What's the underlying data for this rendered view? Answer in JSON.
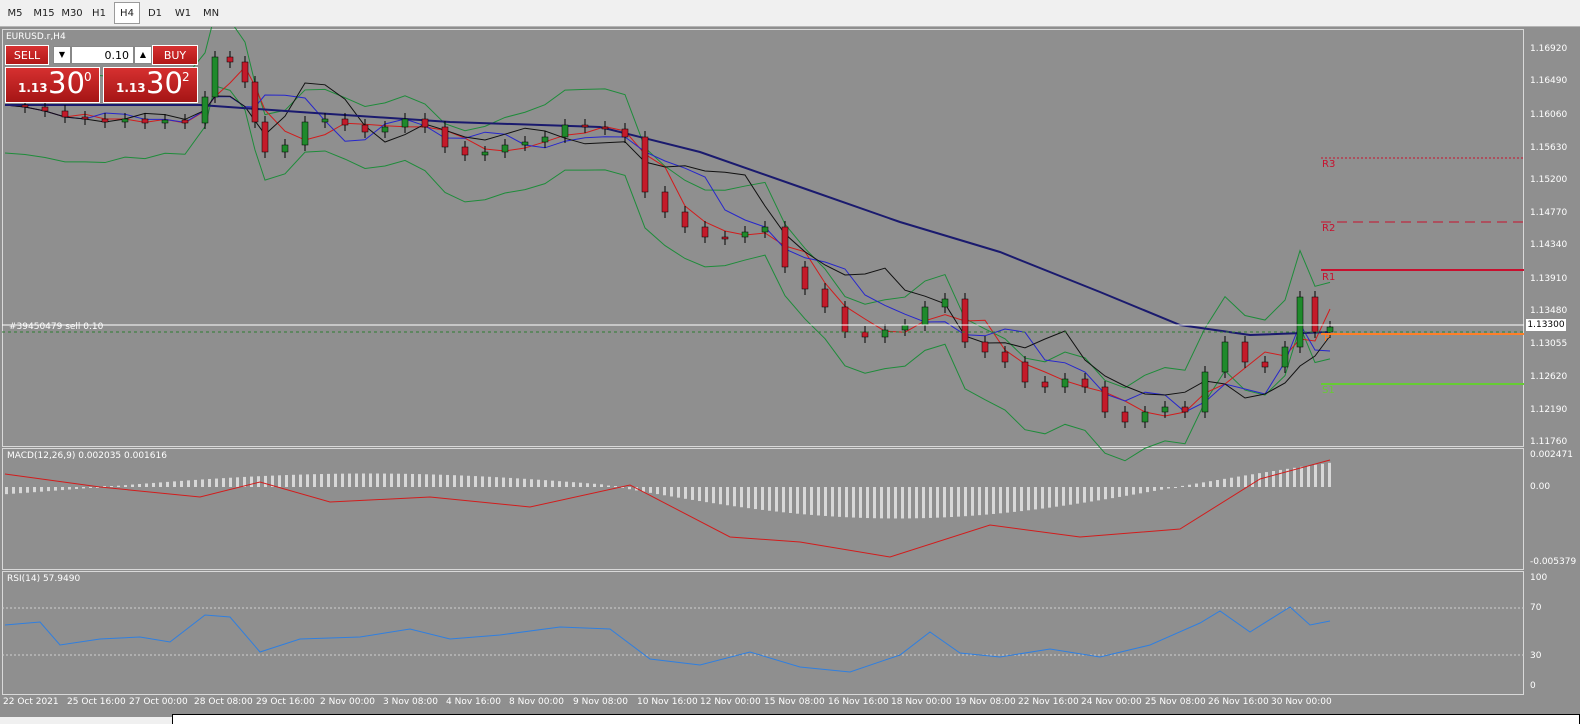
{
  "timeframes": [
    {
      "label": "M5",
      "active": false
    },
    {
      "label": "M15",
      "active": false
    },
    {
      "label": "M30",
      "active": false
    },
    {
      "label": "H1",
      "active": false
    },
    {
      "label": "H4",
      "active": true
    },
    {
      "label": "D1",
      "active": false
    },
    {
      "label": "W1",
      "active": false
    },
    {
      "label": "MN",
      "active": false
    }
  ],
  "chart": {
    "symbol_label": "EURUSD.r,H4",
    "order_label": "#39450479 sell 0.10",
    "current_price": "1.13300",
    "price_ticks": [
      "1.16920",
      "1.16490",
      "1.16060",
      "1.15630",
      "1.15200",
      "1.14770",
      "1.14340",
      "1.13910",
      "1.13480",
      "1.13055",
      "1.12620",
      "1.12190",
      "1.11760"
    ],
    "date_labels": [
      "22 Oct 2021",
      "25 Oct 16:00",
      "27 Oct 00:00",
      "28 Oct 08:00",
      "29 Oct 16:00",
      "2 Nov 00:00",
      "3 Nov 08:00",
      "4 Nov 16:00",
      "8 Nov 00:00",
      "9 Nov 08:00",
      "10 Nov 16:00",
      "12 Nov 00:00",
      "15 Nov 08:00",
      "16 Nov 16:00",
      "18 Nov 00:00",
      "19 Nov 08:00",
      "22 Nov 16:00",
      "24 Nov 00:00",
      "25 Nov 08:00",
      "26 Nov 16:00",
      "30 Nov 00:00"
    ],
    "pivots": [
      {
        "label": "R3",
        "color": "#c8102e"
      },
      {
        "label": "R2",
        "color": "#c8102e"
      },
      {
        "label": "R1",
        "color": "#c8102e"
      },
      {
        "label": "P",
        "color": "#ff7f27"
      },
      {
        "label": "S1",
        "color": "#66cc33"
      }
    ]
  },
  "one_click": {
    "sell_label": "SELL",
    "buy_label": "BUY",
    "lot": "0.10",
    "bid_small": "1.13",
    "bid_big": "30",
    "bid_sup": "0",
    "ask_small": "1.13",
    "ask_big": "30",
    "ask_sup": "2",
    "down_icon": "arrow-down",
    "up_icon": "arrow-up"
  },
  "macd": {
    "label": "MACD(12,26,9) 0.002035 0.001616",
    "ticks": [
      "0.002471",
      "0.00",
      "-0.005379"
    ]
  },
  "rsi": {
    "label": "RSI(14) 57.9490",
    "ticks": [
      "100",
      "70",
      "30",
      "0"
    ]
  }
}
